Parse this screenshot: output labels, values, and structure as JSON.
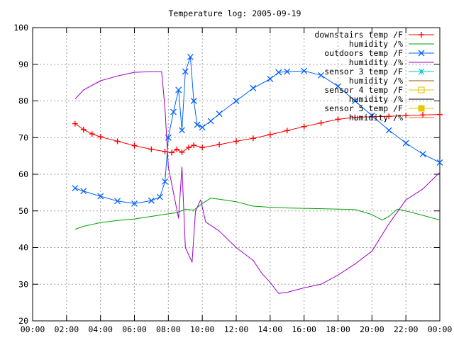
{
  "chart_data": {
    "type": "line",
    "title": "Temperature log: 2005-09-19",
    "xlabel": "",
    "ylabel": "",
    "xlim": [
      0,
      24
    ],
    "ylim": [
      20,
      100
    ],
    "x_ticks": [
      "00:00",
      "02:00",
      "04:00",
      "06:00",
      "08:00",
      "10:00",
      "12:00",
      "14:00",
      "16:00",
      "18:00",
      "20:00",
      "22:00",
      "00:00"
    ],
    "y_ticks": [
      20,
      30,
      40,
      50,
      60,
      70,
      80,
      90,
      100
    ],
    "grid": true,
    "legend_position": "top-right",
    "series": [
      {
        "name": "downstairs temp /F",
        "color": "#ff0000",
        "marker": "plus",
        "points": [
          [
            2.5,
            73.8
          ],
          [
            3.0,
            72.2
          ],
          [
            3.5,
            71.0
          ],
          [
            4.0,
            70.2
          ],
          [
            5.0,
            69.0
          ],
          [
            6.0,
            67.8
          ],
          [
            7.0,
            66.8
          ],
          [
            7.8,
            66.2
          ],
          [
            8.2,
            65.9
          ],
          [
            8.5,
            66.8
          ],
          [
            8.8,
            66.0
          ],
          [
            9.2,
            67.3
          ],
          [
            9.5,
            67.9
          ],
          [
            10.0,
            67.3
          ],
          [
            11.0,
            68.1
          ],
          [
            12.0,
            69.0
          ],
          [
            13.0,
            69.8
          ],
          [
            14.0,
            70.8
          ],
          [
            15.0,
            71.9
          ],
          [
            16.0,
            73.0
          ],
          [
            17.0,
            74.0
          ],
          [
            18.0,
            75.0
          ],
          [
            19.0,
            75.5
          ],
          [
            20.0,
            75.7
          ],
          [
            21.0,
            75.8
          ],
          [
            22.0,
            76.0
          ],
          [
            23.0,
            76.2
          ],
          [
            24.0,
            76.3
          ]
        ]
      },
      {
        "name": "humidity /%",
        "color": "#00a000",
        "marker": "none",
        "points": [
          [
            2.5,
            45.0
          ],
          [
            3.0,
            45.8
          ],
          [
            4.0,
            46.8
          ],
          [
            5.0,
            47.4
          ],
          [
            6.0,
            47.8
          ],
          [
            7.0,
            48.5
          ],
          [
            8.0,
            49.2
          ],
          [
            8.5,
            49.5
          ],
          [
            9.0,
            50.5
          ],
          [
            9.5,
            50.2
          ],
          [
            10.0,
            52.0
          ],
          [
            10.5,
            53.5
          ],
          [
            11.0,
            53.2
          ],
          [
            12.0,
            52.5
          ],
          [
            13.0,
            51.3
          ],
          [
            14.0,
            51.0
          ],
          [
            15.0,
            50.8
          ],
          [
            16.0,
            50.7
          ],
          [
            17.0,
            50.6
          ],
          [
            18.0,
            50.5
          ],
          [
            19.0,
            50.4
          ],
          [
            20.0,
            49.0
          ],
          [
            20.6,
            47.5
          ],
          [
            21.0,
            48.5
          ],
          [
            21.5,
            50.5
          ],
          [
            22.0,
            50.0
          ],
          [
            23.0,
            48.8
          ],
          [
            24.0,
            47.5
          ]
        ]
      },
      {
        "name": "outdoors temp /F",
        "color": "#0060ff",
        "marker": "cross",
        "points": [
          [
            2.5,
            56.2
          ],
          [
            3.0,
            55.4
          ],
          [
            4.0,
            54.0
          ],
          [
            5.0,
            52.7
          ],
          [
            6.0,
            52.0
          ],
          [
            7.0,
            52.8
          ],
          [
            7.5,
            53.8
          ],
          [
            7.8,
            58.0
          ],
          [
            8.0,
            70.0
          ],
          [
            8.3,
            77.0
          ],
          [
            8.6,
            83.0
          ],
          [
            8.8,
            72.0
          ],
          [
            9.0,
            88.0
          ],
          [
            9.3,
            92.0
          ],
          [
            9.5,
            80.0
          ],
          [
            9.7,
            73.5
          ],
          [
            10.0,
            72.8
          ],
          [
            10.5,
            74.5
          ],
          [
            11.0,
            76.5
          ],
          [
            12.0,
            80.0
          ],
          [
            13.0,
            83.5
          ],
          [
            14.0,
            86.0
          ],
          [
            14.5,
            87.8
          ],
          [
            15.0,
            88.0
          ],
          [
            16.0,
            88.2
          ],
          [
            17.0,
            87.0
          ],
          [
            18.0,
            84.0
          ],
          [
            19.0,
            80.0
          ],
          [
            20.0,
            76.0
          ],
          [
            21.0,
            72.0
          ],
          [
            22.0,
            68.5
          ],
          [
            23.0,
            65.5
          ],
          [
            24.0,
            63.2
          ]
        ]
      },
      {
        "name": "humidity /%",
        "color": "#a000c8",
        "marker": "none",
        "points": [
          [
            2.5,
            80.5
          ],
          [
            3.0,
            83.0
          ],
          [
            4.0,
            85.5
          ],
          [
            5.0,
            86.8
          ],
          [
            6.0,
            87.8
          ],
          [
            7.0,
            88.0
          ],
          [
            7.6,
            88.0
          ],
          [
            7.8,
            78.0
          ],
          [
            8.0,
            62.0
          ],
          [
            8.3,
            55.0
          ],
          [
            8.6,
            48.0
          ],
          [
            8.8,
            62.0
          ],
          [
            9.0,
            40.0
          ],
          [
            9.4,
            36.0
          ],
          [
            9.6,
            50.0
          ],
          [
            9.9,
            53.0
          ],
          [
            10.2,
            47.0
          ],
          [
            11.0,
            44.5
          ],
          [
            12.0,
            40.0
          ],
          [
            13.0,
            36.5
          ],
          [
            13.5,
            33.0
          ],
          [
            14.0,
            30.5
          ],
          [
            14.5,
            27.5
          ],
          [
            15.0,
            27.8
          ],
          [
            16.0,
            29.0
          ],
          [
            17.0,
            30.0
          ],
          [
            18.0,
            32.5
          ],
          [
            19.0,
            35.5
          ],
          [
            20.0,
            39.0
          ],
          [
            21.0,
            46.5
          ],
          [
            22.0,
            53.0
          ],
          [
            23.0,
            56.0
          ],
          [
            24.0,
            60.5
          ]
        ]
      },
      {
        "name": "sensor 3 temp /F",
        "color": "#00c8c8",
        "marker": "star",
        "points": []
      },
      {
        "name": "humidity /%",
        "color": "#a05000",
        "marker": "none",
        "points": []
      },
      {
        "name": "sensor 4 temp /F",
        "color": "#e6c800",
        "marker": "square-open",
        "points": []
      },
      {
        "name": "humidity /%",
        "color": "#000000",
        "marker": "none",
        "points": []
      },
      {
        "name": "sensor 5 temp /F",
        "color": "#e6c800",
        "marker": "square-filled",
        "points": []
      },
      {
        "name": "humidity /%",
        "color": "#ff6000",
        "marker": "none",
        "points": []
      }
    ]
  }
}
